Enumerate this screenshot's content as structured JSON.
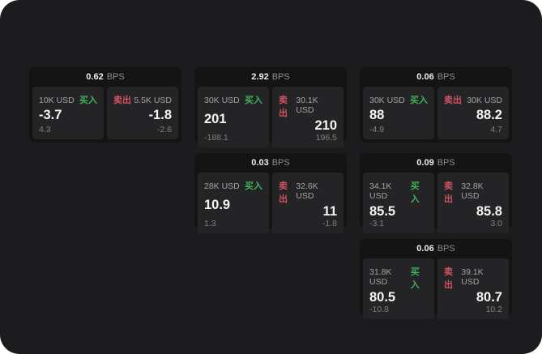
{
  "labels": {
    "bps_unit": "BPS",
    "buy": "买入",
    "sell": "卖出"
  },
  "colors": {
    "page_bg": "#1c1c1e",
    "card_bg": "#141415",
    "tile_bg": "#242427",
    "buy_green": "#43b05c",
    "sell_red": "#d15362"
  },
  "cards": [
    {
      "bps": "0.62",
      "buy": {
        "amount": "10K USD",
        "value": "-3.7",
        "delta": "4.3"
      },
      "sell": {
        "amount": "5.5K USD",
        "value": "-1.8",
        "delta": "-2.6"
      }
    },
    {
      "bps": "2.92",
      "buy": {
        "amount": "30K USD",
        "value": "201",
        "delta": "-188.1"
      },
      "sell": {
        "amount": "30.1K USD",
        "value": "210",
        "delta": "196.5"
      }
    },
    {
      "bps": "0.06",
      "buy": {
        "amount": "30K USD",
        "value": "88",
        "delta": "-4.9"
      },
      "sell": {
        "amount": "30K USD",
        "value": "88.2",
        "delta": "4.7"
      }
    },
    {
      "bps": "0.03",
      "buy": {
        "amount": "28K USD",
        "value": "10.9",
        "delta": "1.3"
      },
      "sell": {
        "amount": "32.6K USD",
        "value": "11",
        "delta": "-1.8"
      }
    },
    {
      "bps": "0.09",
      "buy": {
        "amount": "34.1K USD",
        "value": "85.5",
        "delta": "-3.1"
      },
      "sell": {
        "amount": "32.8K USD",
        "value": "85.8",
        "delta": "3.0"
      }
    },
    {
      "bps": "0.06",
      "buy": {
        "amount": "31.8K USD",
        "value": "80.5",
        "delta": "-10.8"
      },
      "sell": {
        "amount": "39.1K USD",
        "value": "80.7",
        "delta": "10.2"
      }
    }
  ]
}
